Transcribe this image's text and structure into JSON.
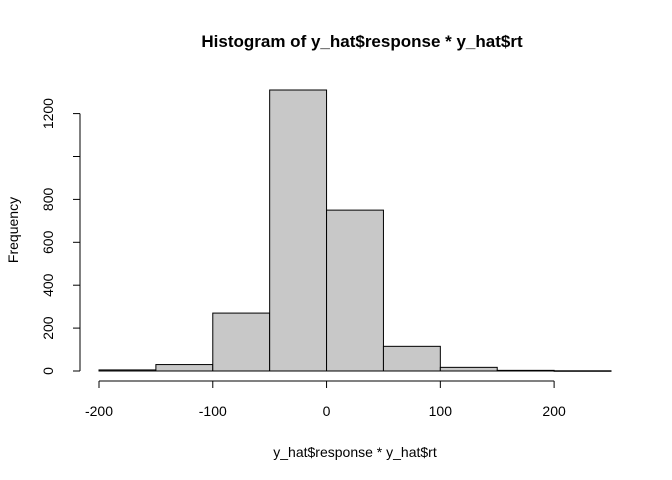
{
  "chart_data": {
    "type": "bar",
    "title": "Histogram of y_hat$response * y_hat$rt",
    "xlabel": "y_hat$response * y_hat$rt",
    "ylabel": "Frequency",
    "bins": [
      {
        "x0": -200,
        "x1": -150,
        "count": 5
      },
      {
        "x0": -150,
        "x1": -100,
        "count": 30
      },
      {
        "x0": -100,
        "x1": -50,
        "count": 270
      },
      {
        "x0": -50,
        "x1": 0,
        "count": 1310
      },
      {
        "x0": 0,
        "x1": 50,
        "count": 750
      },
      {
        "x0": 50,
        "x1": 100,
        "count": 115
      },
      {
        "x0": 100,
        "x1": 150,
        "count": 17
      },
      {
        "x0": 150,
        "x1": 200,
        "count": 3
      },
      {
        "x0": 200,
        "x1": 250,
        "count": 1
      }
    ],
    "x_ticks": [
      -200,
      -100,
      0,
      100,
      200
    ],
    "x_tick_labels": [
      "-200",
      "-100",
      "0",
      "100",
      "200"
    ],
    "y_ticks": [
      0,
      200,
      400,
      600,
      800,
      1000,
      1200
    ],
    "y_tick_labels": [
      "0",
      "200",
      "400",
      "600",
      "800",
      "",
      "1200"
    ],
    "xlim": [
      -200,
      250
    ],
    "ylim": [
      0,
      1310
    ],
    "bar_color": "#c8c8c8",
    "grid": false
  }
}
